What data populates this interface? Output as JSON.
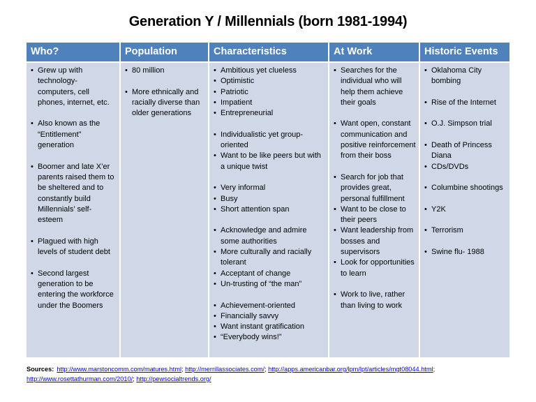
{
  "title": "Generation Y / Millennials (born 1981-1994)",
  "columns": [
    {
      "header": "Who?",
      "items": [
        {
          "text": "Grew up with technology- computers, cell phones, internet, etc.",
          "gap": false
        },
        {
          "text": "Also known as the “Entitlement” generation",
          "gap": true
        },
        {
          "text": "Boomer and late X’er parents raised them to be sheltered and to constantly build Millennials’ self-esteem",
          "gap": true
        },
        {
          "text": "Plagued with high levels of student debt",
          "gap": true
        },
        {
          "text": "Second largest generation to be entering the workforce under the Boomers",
          "gap": true
        }
      ]
    },
    {
      "header": "Population",
      "items": [
        {
          "text": "80 million",
          "gap": false
        },
        {
          "text": "More ethnically and racially diverse than older generations",
          "gap": true
        }
      ]
    },
    {
      "header": "Characteristics",
      "items": [
        {
          "text": "Ambitious yet clueless",
          "gap": false
        },
        {
          "text": "Optimistic",
          "gap": false
        },
        {
          "text": "Patriotic",
          "gap": false
        },
        {
          "text": "Impatient",
          "gap": false
        },
        {
          "text": "Entrepreneurial",
          "gap": false
        },
        {
          "text": "Individualistic yet group-oriented",
          "gap": true
        },
        {
          "text": "Want to be like peers but with a unique twist",
          "gap": false
        },
        {
          "text": "Very informal",
          "gap": true
        },
        {
          "text": "Busy",
          "gap": false
        },
        {
          "text": "Short attention span",
          "gap": false
        },
        {
          "text": "Acknowledge and admire some authorities",
          "gap": true
        },
        {
          "text": "More culturally and racially tolerant",
          "gap": false
        },
        {
          "text": "Acceptant of change",
          "gap": false
        },
        {
          "text": "Un-trusting of “the man”",
          "gap": false
        },
        {
          "text": "Achievement-oriented",
          "gap": true
        },
        {
          "text": "Financially savvy",
          "gap": false
        },
        {
          "text": "Want instant gratification",
          "gap": false
        },
        {
          "text": "“Everybody wins!”",
          "gap": false
        }
      ]
    },
    {
      "header": "At Work",
      "items": [
        {
          "text": "Searches for the individual who will help them achieve their goals",
          "gap": false
        },
        {
          "text": "Want open, constant communication and positive reinforcement from their boss",
          "gap": true
        },
        {
          "text": "Search for job that provides great, personal fulfillment",
          "gap": true
        },
        {
          "text": "Want to be close to their peers",
          "gap": false
        },
        {
          "text": "Want leadership from bosses and supervisors",
          "gap": false
        },
        {
          "text": "Look for opportunities to learn",
          "gap": false
        },
        {
          "text": "Work to live, rather than living to work",
          "gap": true
        }
      ]
    },
    {
      "header": "Historic Events",
      "items": [
        {
          "text": "Oklahoma City bombing",
          "gap": false
        },
        {
          "text": "Rise of the Internet",
          "gap": true
        },
        {
          "text": "O.J. Simpson trial",
          "gap": true
        },
        {
          "text": "Death of Princess Diana",
          "gap": true
        },
        {
          "text": "CDs/DVDs",
          "gap": false
        },
        {
          "text": "Columbine shootings",
          "gap": true
        },
        {
          "text": "Y2K",
          "gap": true
        },
        {
          "text": "Terrorism",
          "gap": true
        },
        {
          "text": "Swine flu- 1988",
          "gap": true
        }
      ]
    }
  ],
  "sources": {
    "label": "Sources:",
    "links": [
      "http://www.marstoncomm.com/matures.html",
      "http://merrillassociates.com/",
      "http://apps.americanbar.org/lpm/lpt/articles/mgt08044.html",
      "http://www.rosettathurman.com/2010/",
      "http://pewsocialtrends.org/"
    ],
    "separator": "; "
  },
  "colors": {
    "header_bg": "#4f81bd",
    "body_bg": "#d0d8e8",
    "link": "#0000ee"
  }
}
